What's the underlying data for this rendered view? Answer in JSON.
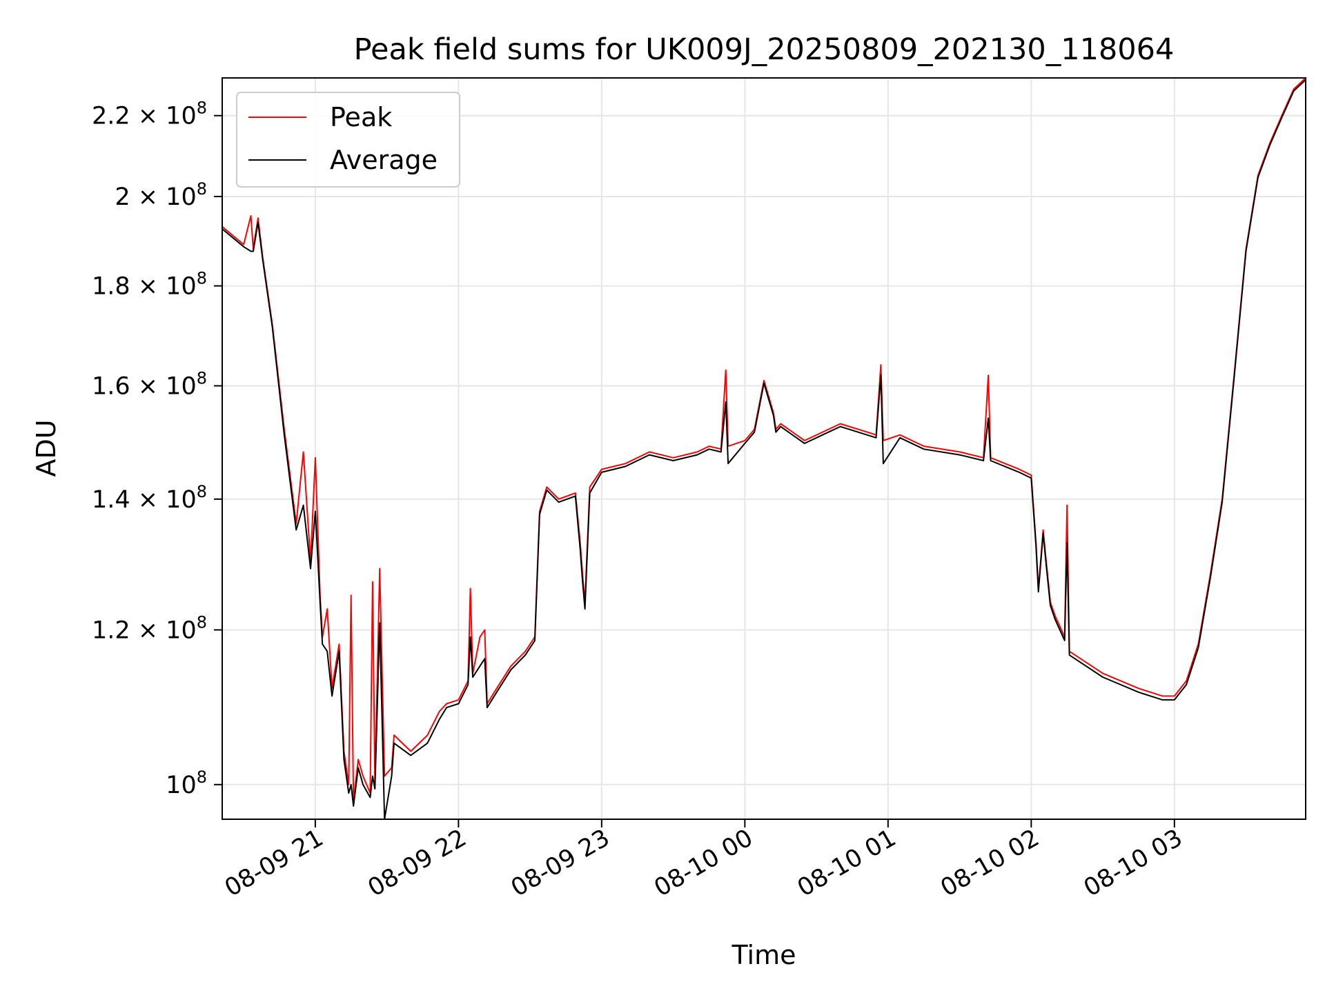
{
  "chart_data": {
    "type": "line",
    "title": "Peak field sums for UK009J_20250809_202130_118064",
    "xlabel": "Time",
    "ylabel": "ADU",
    "yscale": "log",
    "grid": true,
    "legend_position": "top-left",
    "xlim": [
      "2025-08-09 20:21",
      "2025-08-10 03:55"
    ],
    "ylim": [
      96000000,
      230000000
    ],
    "x_ticks": [
      {
        "t": "2025-08-09 21:00",
        "label": "08-09 21"
      },
      {
        "t": "2025-08-09 22:00",
        "label": "08-09 22"
      },
      {
        "t": "2025-08-09 23:00",
        "label": "08-09 23"
      },
      {
        "t": "2025-08-10 00:00",
        "label": "08-10 00"
      },
      {
        "t": "2025-08-10 01:00",
        "label": "08-10 01"
      },
      {
        "t": "2025-08-10 02:00",
        "label": "08-10 02"
      },
      {
        "t": "2025-08-10 03:00",
        "label": "08-10 03"
      }
    ],
    "y_ticks": [
      {
        "v": 100000000,
        "label": "10",
        "exp": "8"
      },
      {
        "v": 120000000,
        "label": "1.2 × 10",
        "exp": "8"
      },
      {
        "v": 140000000,
        "label": "1.4 × 10",
        "exp": "8"
      },
      {
        "v": 160000000,
        "label": "1.6 × 10",
        "exp": "8"
      },
      {
        "v": 180000000,
        "label": "1.8 × 10",
        "exp": "8"
      },
      {
        "v": 200000000,
        "label": "2 × 10",
        "exp": "8"
      },
      {
        "v": 220000000,
        "label": "2.2 × 10",
        "exp": "8"
      }
    ],
    "series": [
      {
        "name": "Peak",
        "color": "#ff0000",
        "points": [
          [
            "2025-08-09 20:21",
            193000000
          ],
          [
            "2025-08-09 20:30",
            189000000
          ],
          [
            "2025-08-09 20:33",
            195500000
          ],
          [
            "2025-08-09 20:34",
            188000000
          ],
          [
            "2025-08-09 20:36",
            195000000
          ],
          [
            "2025-08-09 20:38",
            186000000
          ],
          [
            "2025-08-09 20:42",
            172000000
          ],
          [
            "2025-08-09 20:47",
            152000000
          ],
          [
            "2025-08-09 20:52",
            136000000
          ],
          [
            "2025-08-09 20:55",
            148000000
          ],
          [
            "2025-08-09 20:58",
            130000000
          ],
          [
            "2025-08-09 21:00",
            147000000
          ],
          [
            "2025-08-09 21:02",
            125000000
          ],
          [
            "2025-08-09 21:03",
            119000000
          ],
          [
            "2025-08-09 21:05",
            123000000
          ],
          [
            "2025-08-09 21:07",
            112000000
          ],
          [
            "2025-08-09 21:10",
            118000000
          ],
          [
            "2025-08-09 21:12",
            104000000
          ],
          [
            "2025-08-09 21:14",
            100000000
          ],
          [
            "2025-08-09 21:15",
            125000000
          ],
          [
            "2025-08-09 21:16",
            98000000
          ],
          [
            "2025-08-09 21:18",
            103000000
          ],
          [
            "2025-08-09 21:20",
            101000000
          ],
          [
            "2025-08-09 21:23",
            99000000
          ],
          [
            "2025-08-09 21:24",
            127000000
          ],
          [
            "2025-08-09 21:25",
            100000000
          ],
          [
            "2025-08-09 21:27",
            129000000
          ],
          [
            "2025-08-09 21:29",
            101000000
          ],
          [
            "2025-08-09 21:32",
            102000000
          ],
          [
            "2025-08-09 21:33",
            106000000
          ],
          [
            "2025-08-09 21:40",
            104000000
          ],
          [
            "2025-08-09 21:47",
            106000000
          ],
          [
            "2025-08-09 21:52",
            109000000
          ],
          [
            "2025-08-09 21:55",
            110000000
          ],
          [
            "2025-08-09 22:00",
            110500000
          ],
          [
            "2025-08-09 22:04",
            113000000
          ],
          [
            "2025-08-09 22:05",
            126000000
          ],
          [
            "2025-08-09 22:06",
            114000000
          ],
          [
            "2025-08-09 22:09",
            119000000
          ],
          [
            "2025-08-09 22:11",
            120000000
          ],
          [
            "2025-08-09 22:12",
            110000000
          ],
          [
            "2025-08-09 22:16",
            112000000
          ],
          [
            "2025-08-09 22:22",
            115000000
          ],
          [
            "2025-08-09 22:28",
            117000000
          ],
          [
            "2025-08-09 22:32",
            119000000
          ],
          [
            "2025-08-09 22:34",
            138000000
          ],
          [
            "2025-08-09 22:37",
            142000000
          ],
          [
            "2025-08-09 22:42",
            140000000
          ],
          [
            "2025-08-09 22:49",
            141000000
          ],
          [
            "2025-08-09 22:51",
            133000000
          ],
          [
            "2025-08-09 22:52",
            128000000
          ],
          [
            "2025-08-09 22:53",
            124000000
          ],
          [
            "2025-08-09 22:55",
            142000000
          ],
          [
            "2025-08-09 23:00",
            145000000
          ],
          [
            "2025-08-09 23:10",
            146000000
          ],
          [
            "2025-08-09 23:20",
            148000000
          ],
          [
            "2025-08-09 23:30",
            147000000
          ],
          [
            "2025-08-09 23:40",
            148000000
          ],
          [
            "2025-08-09 23:45",
            149000000
          ],
          [
            "2025-08-09 23:50",
            148500000
          ],
          [
            "2025-08-09 23:52",
            163000000
          ],
          [
            "2025-08-09 23:53",
            149000000
          ],
          [
            "2025-08-10 00:00",
            150000000
          ],
          [
            "2025-08-10 00:04",
            152000000
          ],
          [
            "2025-08-10 00:08",
            161000000
          ],
          [
            "2025-08-10 00:12",
            155000000
          ],
          [
            "2025-08-10 00:13",
            152000000
          ],
          [
            "2025-08-10 00:15",
            153000000
          ],
          [
            "2025-08-10 00:25",
            150000000
          ],
          [
            "2025-08-10 00:35",
            152000000
          ],
          [
            "2025-08-10 00:40",
            153000000
          ],
          [
            "2025-08-10 00:55",
            151000000
          ],
          [
            "2025-08-10 00:57",
            164000000
          ],
          [
            "2025-08-10 00:58",
            150000000
          ],
          [
            "2025-08-10 01:05",
            151000000
          ],
          [
            "2025-08-10 01:15",
            149000000
          ],
          [
            "2025-08-10 01:30",
            148000000
          ],
          [
            "2025-08-10 01:40",
            147000000
          ],
          [
            "2025-08-10 01:42",
            162000000
          ],
          [
            "2025-08-10 01:43",
            147000000
          ],
          [
            "2025-08-10 01:55",
            145000000
          ],
          [
            "2025-08-10 02:00",
            144000000
          ],
          [
            "2025-08-10 02:02",
            133000000
          ],
          [
            "2025-08-10 02:03",
            126000000
          ],
          [
            "2025-08-10 02:05",
            135000000
          ],
          [
            "2025-08-10 02:06",
            131000000
          ],
          [
            "2025-08-10 02:08",
            124000000
          ],
          [
            "2025-08-10 02:10",
            122000000
          ],
          [
            "2025-08-10 02:14",
            119000000
          ],
          [
            "2025-08-10 02:15",
            139000000
          ],
          [
            "2025-08-10 02:16",
            117000000
          ],
          [
            "2025-08-10 02:30",
            114000000
          ],
          [
            "2025-08-10 02:45",
            112000000
          ],
          [
            "2025-08-10 02:55",
            111000000
          ],
          [
            "2025-08-10 03:00",
            111000000
          ],
          [
            "2025-08-10 03:05",
            113000000
          ],
          [
            "2025-08-10 03:10",
            118000000
          ],
          [
            "2025-08-10 03:15",
            128000000
          ],
          [
            "2025-08-10 03:20",
            140000000
          ],
          [
            "2025-08-10 03:25",
            162000000
          ],
          [
            "2025-08-10 03:30",
            188000000
          ],
          [
            "2025-08-10 03:35",
            205000000
          ],
          [
            "2025-08-10 03:40",
            213000000
          ],
          [
            "2025-08-10 03:45",
            220000000
          ],
          [
            "2025-08-10 03:50",
            227000000
          ],
          [
            "2025-08-10 03:55",
            230000000
          ]
        ]
      },
      {
        "name": "Average",
        "color": "#000000",
        "points": [
          [
            "2025-08-09 20:21",
            192500000
          ],
          [
            "2025-08-09 20:30",
            188500000
          ],
          [
            "2025-08-09 20:33",
            187500000
          ],
          [
            "2025-08-09 20:34",
            187500000
          ],
          [
            "2025-08-09 20:36",
            194000000
          ],
          [
            "2025-08-09 20:38",
            185500000
          ],
          [
            "2025-08-09 20:42",
            171500000
          ],
          [
            "2025-08-09 20:47",
            151000000
          ],
          [
            "2025-08-09 20:52",
            135000000
          ],
          [
            "2025-08-09 20:55",
            139000000
          ],
          [
            "2025-08-09 20:58",
            129000000
          ],
          [
            "2025-08-09 21:00",
            138000000
          ],
          [
            "2025-08-09 21:02",
            124000000
          ],
          [
            "2025-08-09 21:03",
            118000000
          ],
          [
            "2025-08-09 21:05",
            117000000
          ],
          [
            "2025-08-09 21:07",
            111000000
          ],
          [
            "2025-08-09 21:10",
            117000000
          ],
          [
            "2025-08-09 21:12",
            103000000
          ],
          [
            "2025-08-09 21:14",
            99000000
          ],
          [
            "2025-08-09 21:15",
            100000000
          ],
          [
            "2025-08-09 21:16",
            97500000
          ],
          [
            "2025-08-09 21:18",
            102000000
          ],
          [
            "2025-08-09 21:20",
            100000000
          ],
          [
            "2025-08-09 21:23",
            98500000
          ],
          [
            "2025-08-09 21:24",
            101000000
          ],
          [
            "2025-08-09 21:25",
            99500000
          ],
          [
            "2025-08-09 21:27",
            121000000
          ],
          [
            "2025-08-09 21:29",
            96000000
          ],
          [
            "2025-08-09 21:32",
            101000000
          ],
          [
            "2025-08-09 21:33",
            105000000
          ],
          [
            "2025-08-09 21:40",
            103500000
          ],
          [
            "2025-08-09 21:47",
            105000000
          ],
          [
            "2025-08-09 21:52",
            108000000
          ],
          [
            "2025-08-09 21:55",
            109500000
          ],
          [
            "2025-08-09 22:00",
            110000000
          ],
          [
            "2025-08-09 22:04",
            112500000
          ],
          [
            "2025-08-09 22:05",
            119000000
          ],
          [
            "2025-08-09 22:06",
            113500000
          ],
          [
            "2025-08-09 22:09",
            115000000
          ],
          [
            "2025-08-09 22:11",
            116000000
          ],
          [
            "2025-08-09 22:12",
            109500000
          ],
          [
            "2025-08-09 22:16",
            111500000
          ],
          [
            "2025-08-09 22:22",
            114500000
          ],
          [
            "2025-08-09 22:28",
            116500000
          ],
          [
            "2025-08-09 22:32",
            118500000
          ],
          [
            "2025-08-09 22:34",
            137500000
          ],
          [
            "2025-08-09 22:37",
            141500000
          ],
          [
            "2025-08-09 22:42",
            139500000
          ],
          [
            "2025-08-09 22:49",
            140500000
          ],
          [
            "2025-08-09 22:51",
            132000000
          ],
          [
            "2025-08-09 22:52",
            127000000
          ],
          [
            "2025-08-09 22:53",
            123000000
          ],
          [
            "2025-08-09 22:55",
            141000000
          ],
          [
            "2025-08-09 23:00",
            144500000
          ],
          [
            "2025-08-09 23:10",
            145500000
          ],
          [
            "2025-08-09 23:20",
            147500000
          ],
          [
            "2025-08-09 23:30",
            146500000
          ],
          [
            "2025-08-09 23:40",
            147500000
          ],
          [
            "2025-08-09 23:45",
            148500000
          ],
          [
            "2025-08-09 23:50",
            148000000
          ],
          [
            "2025-08-09 23:52",
            157000000
          ],
          [
            "2025-08-09 23:53",
            146000000
          ],
          [
            "2025-08-10 00:00",
            149500000
          ],
          [
            "2025-08-10 00:04",
            151500000
          ],
          [
            "2025-08-10 00:08",
            160500000
          ],
          [
            "2025-08-10 00:12",
            154500000
          ],
          [
            "2025-08-10 00:13",
            151500000
          ],
          [
            "2025-08-10 00:15",
            152500000
          ],
          [
            "2025-08-10 00:25",
            149500000
          ],
          [
            "2025-08-10 00:35",
            151500000
          ],
          [
            "2025-08-10 00:40",
            152500000
          ],
          [
            "2025-08-10 00:55",
            150500000
          ],
          [
            "2025-08-10 00:57",
            162000000
          ],
          [
            "2025-08-10 00:58",
            146000000
          ],
          [
            "2025-08-10 01:05",
            150500000
          ],
          [
            "2025-08-10 01:15",
            148500000
          ],
          [
            "2025-08-10 01:30",
            147500000
          ],
          [
            "2025-08-10 01:40",
            146500000
          ],
          [
            "2025-08-10 01:42",
            154000000
          ],
          [
            "2025-08-10 01:43",
            146500000
          ],
          [
            "2025-08-10 01:55",
            144500000
          ],
          [
            "2025-08-10 02:00",
            143500000
          ],
          [
            "2025-08-10 02:02",
            132500000
          ],
          [
            "2025-08-10 02:03",
            125500000
          ],
          [
            "2025-08-10 02:05",
            134500000
          ],
          [
            "2025-08-10 02:06",
            130500000
          ],
          [
            "2025-08-10 02:08",
            123500000
          ],
          [
            "2025-08-10 02:10",
            121500000
          ],
          [
            "2025-08-10 02:14",
            118500000
          ],
          [
            "2025-08-10 02:15",
            133000000
          ],
          [
            "2025-08-10 02:16",
            116500000
          ],
          [
            "2025-08-10 02:30",
            113500000
          ],
          [
            "2025-08-10 02:45",
            111500000
          ],
          [
            "2025-08-10 02:55",
            110500000
          ],
          [
            "2025-08-10 03:00",
            110500000
          ],
          [
            "2025-08-10 03:05",
            112500000
          ],
          [
            "2025-08-10 03:10",
            117500000
          ],
          [
            "2025-08-10 03:15",
            127500000
          ],
          [
            "2025-08-10 03:20",
            139500000
          ],
          [
            "2025-08-10 03:25",
            161500000
          ],
          [
            "2025-08-10 03:30",
            187500000
          ],
          [
            "2025-08-10 03:35",
            204500000
          ],
          [
            "2025-08-10 03:40",
            212500000
          ],
          [
            "2025-08-10 03:45",
            219500000
          ],
          [
            "2025-08-10 03:50",
            226500000
          ],
          [
            "2025-08-10 03:55",
            229500000
          ]
        ]
      }
    ]
  }
}
